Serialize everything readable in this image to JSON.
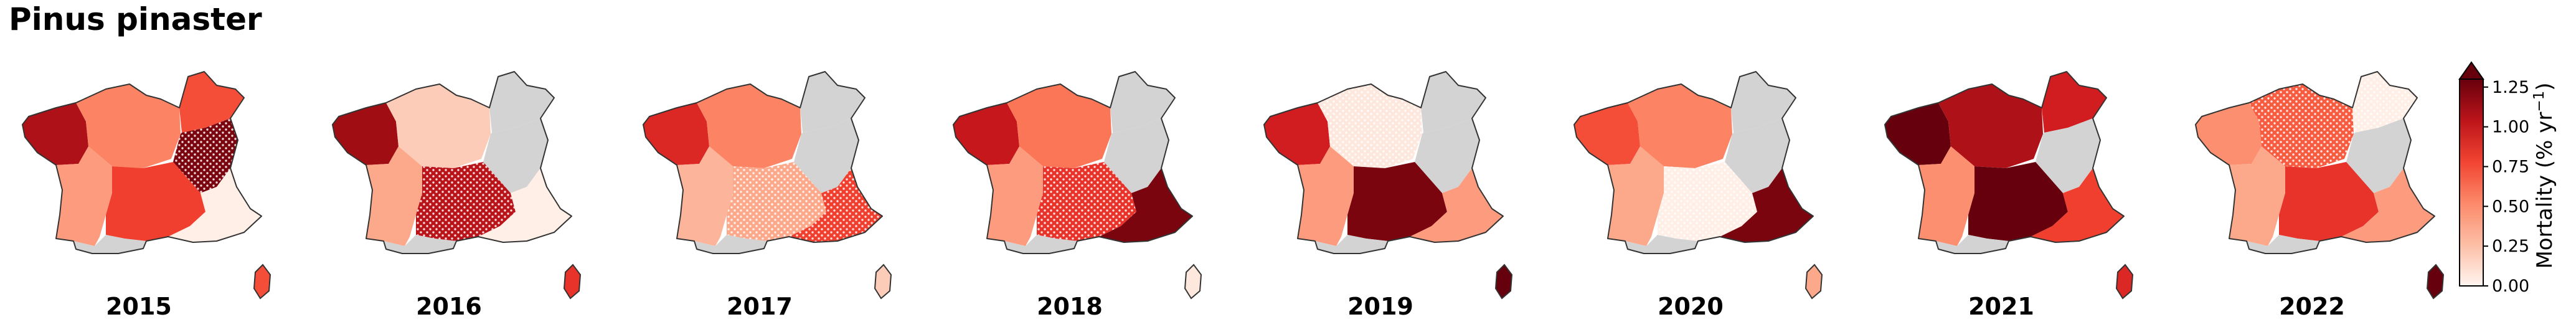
{
  "title": "Pinus pinaster",
  "colorbar": {
    "label_prefix": "Mortality (% yr",
    "label_exp": "−1",
    "label_suffix": ")",
    "ticks": [
      "0.00",
      "0.25",
      "0.50",
      "0.75",
      "1.00",
      "1.25"
    ],
    "min": 0,
    "max": 1.3,
    "extend": "max",
    "colormap": "Reds"
  },
  "colors": {
    "nodata": "#d3d3d3",
    "outline": "#333333"
  },
  "maps": [
    {
      "year": "2015",
      "regions": {
        "NW": 1.1,
        "N": 0.55,
        "NE": 0.75,
        "E": 1.25,
        "SW": 0.45,
        "C": 0.8,
        "SE": 0.05,
        "CO": 0.75
      }
    },
    {
      "year": "2016",
      "regions": {
        "NW": 1.15,
        "N": 0.25,
        "NE": null,
        "E": null,
        "SW": 0.4,
        "C": 1.05,
        "SE": 0.05,
        "CO": 0.85
      }
    },
    {
      "year": "2017",
      "regions": {
        "NW": 0.9,
        "N": 0.55,
        "NE": null,
        "E": null,
        "SW": 0.35,
        "C": 0.4,
        "SE": 0.8,
        "CO": 0.25
      }
    },
    {
      "year": "2018",
      "regions": {
        "NW": 1.0,
        "N": 0.6,
        "NE": null,
        "E": null,
        "SW": 0.45,
        "C": 0.85,
        "SE": 1.25,
        "CO": 0.1
      }
    },
    {
      "year": "2019",
      "regions": {
        "NW": 0.95,
        "N": 0.1,
        "NE": null,
        "E": null,
        "SW": 0.45,
        "C": 1.25,
        "SE": 0.45,
        "CO": 1.3
      }
    },
    {
      "year": "2020",
      "regions": {
        "NW": 0.75,
        "N": 0.55,
        "NE": null,
        "E": null,
        "SW": 0.4,
        "C": 0.05,
        "SE": 1.25,
        "CO": 0.4
      }
    },
    {
      "year": "2021",
      "regions": {
        "NW": 1.3,
        "N": 1.1,
        "NE": 0.95,
        "E": null,
        "SW": 0.5,
        "C": 1.3,
        "SE": 0.8,
        "CO": 0.9
      }
    },
    {
      "year": "2022",
      "regions": {
        "NW": 0.5,
        "N": 0.7,
        "NE": 0.05,
        "E": null,
        "SW": 0.4,
        "C": 0.85,
        "SE": 0.45,
        "CO": 1.3
      }
    }
  ]
}
